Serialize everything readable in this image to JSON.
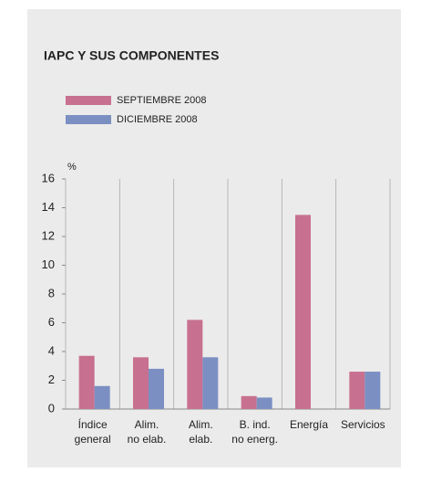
{
  "chart_data": {
    "type": "bar",
    "title": "IAPC Y SUS COMPONENTES",
    "y_unit": "%",
    "categories": [
      [
        "Índice",
        "general"
      ],
      [
        "Alim.",
        "no elab."
      ],
      [
        "Alim.",
        "elab."
      ],
      [
        "B. ind.",
        "no energ."
      ],
      [
        "Energía"
      ],
      [
        "Servicios"
      ]
    ],
    "series": [
      {
        "name": "SEPTIEMBRE 2008",
        "color": "#c8708f",
        "values": [
          3.7,
          3.6,
          6.2,
          0.9,
          13.5,
          2.6
        ]
      },
      {
        "name": "DICIEMBRE 2008",
        "color": "#7b8fc2",
        "values": [
          1.6,
          2.8,
          3.6,
          0.8,
          null,
          2.6
        ]
      }
    ],
    "ylim": [
      0,
      16
    ],
    "yticks": [
      0,
      2,
      4,
      6,
      8,
      10,
      12,
      14,
      16
    ]
  }
}
